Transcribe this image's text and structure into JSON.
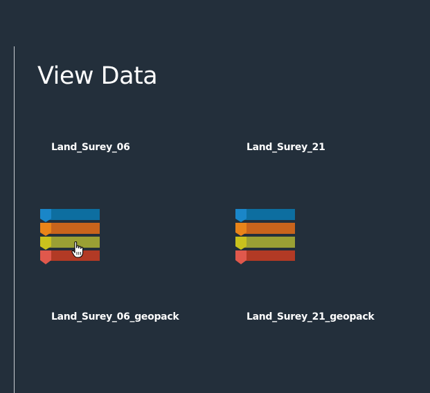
{
  "page": {
    "title": "View Data"
  },
  "datasets": [
    {
      "name": "Land_Surey_06",
      "geopack_name": "Land_Surey_06_geopack",
      "icon": "stacked-layers-icon"
    },
    {
      "name": "Land_Surey_21",
      "geopack_name": "Land_Surey_21_geopack",
      "icon": "stacked-layers-icon"
    }
  ],
  "colors": {
    "background": "#232f3b",
    "layer_blue": "#0d6ea0",
    "layer_blue_tab": "#1a86c8",
    "layer_orange": "#c9641c",
    "layer_orange_tab": "#e98419",
    "layer_olive": "#9aa034",
    "layer_olive_tab": "#c9c21d",
    "layer_red": "#b23a25",
    "layer_red_tab": "#e0584c"
  }
}
